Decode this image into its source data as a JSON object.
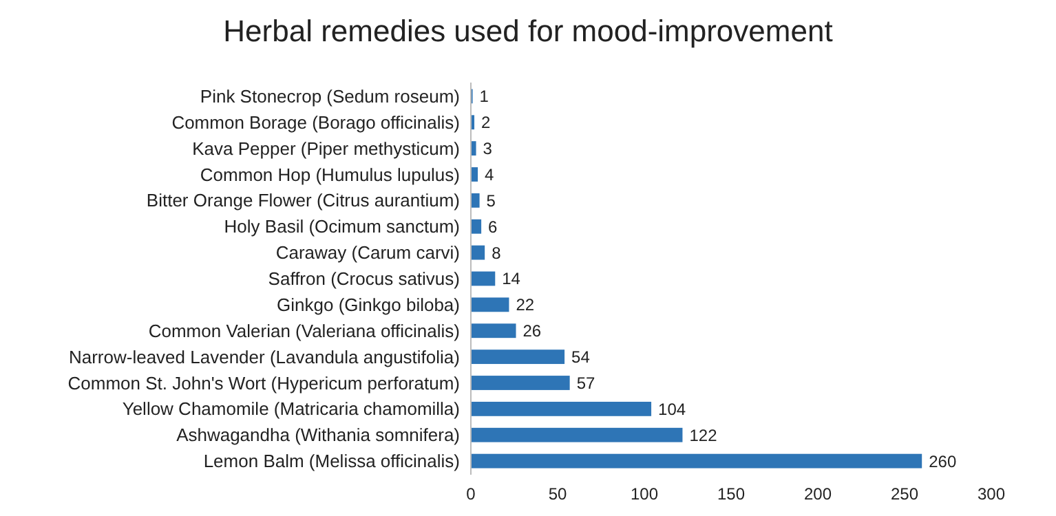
{
  "chart_data": {
    "type": "bar",
    "orientation": "horizontal",
    "title": "Herbal remedies used for mood-improvement",
    "categories": [
      "Pink Stonecrop (Sedum roseum)",
      "Common Borage (Borago officinalis)",
      "Kava Pepper (Piper methysticum)",
      "Common Hop (Humulus lupulus)",
      "Bitter Orange Flower (Citrus aurantium)",
      "Holy Basil (Ocimum sanctum)",
      "Caraway (Carum carvi)",
      "Saffron (Crocus sativus)",
      "Ginkgo (Ginkgo biloba)",
      "Common Valerian (Valeriana officinalis)",
      "Narrow-leaved Lavender (Lavandula angustifolia)",
      "Common St. John's Wort (Hypericum perforatum)",
      "Yellow Chamomile (Matricaria chamomilla)",
      "Ashwagandha (Withania somnifera)",
      "Lemon Balm (Melissa officinalis)"
    ],
    "values": [
      1,
      2,
      3,
      4,
      5,
      6,
      8,
      14,
      22,
      26,
      54,
      57,
      104,
      122,
      260
    ],
    "color": "#2e75b6",
    "xlim": [
      0,
      300
    ],
    "xticks": [
      0,
      50,
      100,
      150,
      200,
      250,
      300
    ],
    "data_labels": true
  }
}
